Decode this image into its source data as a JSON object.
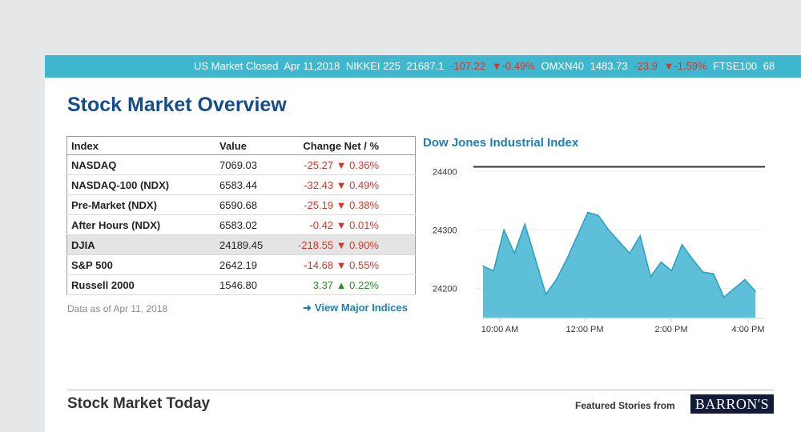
{
  "ticker": {
    "status": "US Market Closed",
    "date": "Apr 11,2018",
    "items": [
      {
        "name": "NIKKEI 225",
        "value": "21687.1",
        "change": "-107.22",
        "pct": "▼-0.49%"
      },
      {
        "name": "OMXN40",
        "value": "1483.73",
        "change": "-23.9",
        "pct": "▼-1.59%"
      },
      {
        "name": "FTSE100",
        "value": "68"
      }
    ]
  },
  "overview": {
    "title": "Stock Market Overview",
    "table": {
      "headers": {
        "index": "Index",
        "value": "Value",
        "change": "Change Net / %"
      },
      "rows": [
        {
          "index": "NASDAQ",
          "value": "7069.03",
          "change": "-25.27 ▼ 0.36%"
        },
        {
          "index": "NASDAQ-100 (NDX)",
          "value": "6583.44",
          "change": "-32.43 ▼ 0.49%"
        },
        {
          "index": "Pre-Market (NDX)",
          "value": "6590.68",
          "change": "-25.19 ▼ 0.38%"
        },
        {
          "index": "After Hours (NDX)",
          "value": "6583.02",
          "change": "-0.42 ▼ 0.01%"
        },
        {
          "index": "DJIA",
          "value": "24189.45",
          "change": "-218.55 ▼ 0.90%"
        },
        {
          "index": "S&P 500",
          "value": "2642.19",
          "change": "-14.68 ▼ 0.55%"
        },
        {
          "index": "Russell 2000",
          "value": "1546.80",
          "change": "3.37 ▲ 0.22%"
        }
      ]
    },
    "as_of": "Data as of Apr 11, 2018",
    "view_link": "View Major Indices"
  },
  "chart_data": {
    "type": "area",
    "title": "Dow Jones Industrial Index",
    "x": [
      "9:30",
      "9:45",
      "10:00",
      "10:15",
      "10:30",
      "10:45",
      "11:00",
      "11:15",
      "11:30",
      "11:45",
      "12:00",
      "12:15",
      "12:30",
      "12:45",
      "1:00",
      "1:15",
      "1:30",
      "1:45",
      "2:00",
      "2:15",
      "2:30",
      "2:45",
      "3:00",
      "3:15",
      "3:30",
      "3:45",
      "4:00"
    ],
    "values": [
      24238,
      24230,
      24300,
      24260,
      24310,
      24250,
      24190,
      24215,
      24250,
      24290,
      24330,
      24325,
      24300,
      24280,
      24260,
      24290,
      24220,
      24245,
      24230,
      24275,
      24250,
      24228,
      24225,
      24185,
      24200,
      24215,
      24195
    ],
    "ylim": [
      24150,
      24410
    ],
    "yticks": [
      "24400",
      "24300",
      "24200"
    ],
    "xticks": [
      "10:00 AM",
      "12:00 PM",
      "2:00 PM",
      "4:00 PM"
    ],
    "previous_close": 24408,
    "fill_color": "#4bb8d4",
    "line_color": "#2a9ec0"
  },
  "today": {
    "title": "Stock Market Today",
    "featured": "Featured Stories from",
    "brand": "BARRON'S"
  }
}
